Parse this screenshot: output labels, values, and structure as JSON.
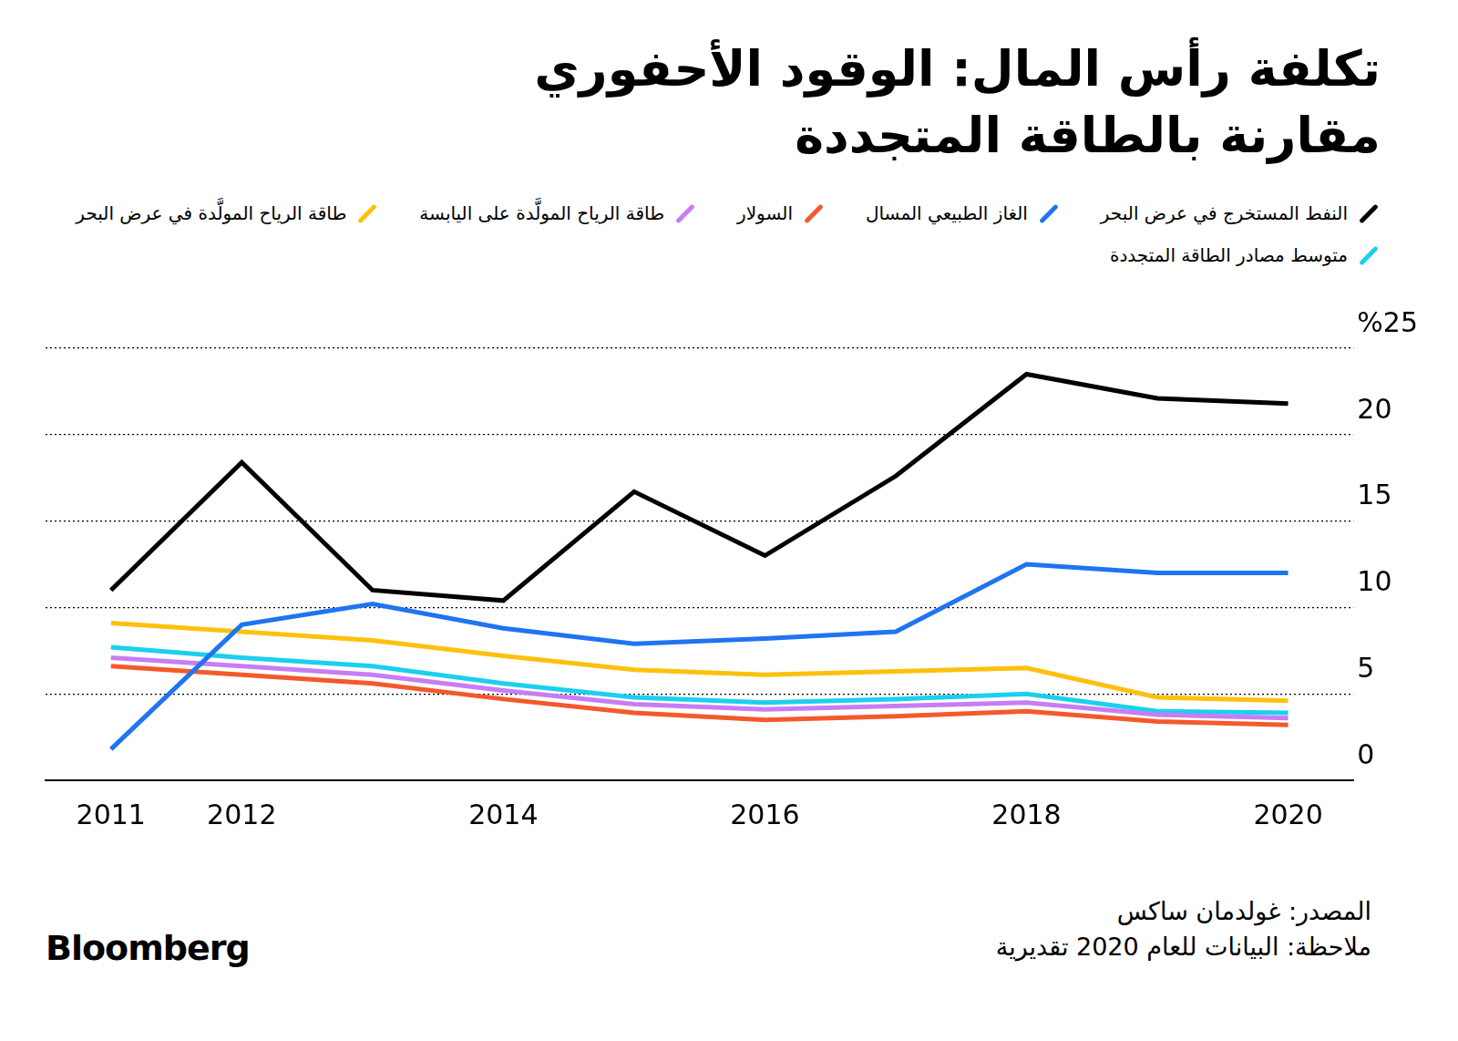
{
  "chart_data": {
    "type": "line",
    "title": "تكلفة رأس المال: الوقود الأحفوري مقارنة بالطاقة المتجددة",
    "categories": [
      "2011",
      "2012",
      null,
      "2014",
      null,
      "2016",
      null,
      "2018",
      null,
      "2020"
    ],
    "series": [
      {
        "name": "النفط المستخرج في عرض البحر",
        "color": "#000000",
        "values": [
          11.0,
          18.4,
          11.0,
          10.4,
          16.7,
          13.0,
          17.6,
          23.5,
          22.1,
          21.8
        ]
      },
      {
        "name": "الغاز الطبيعي المسال",
        "color": "#1f74f0",
        "values": [
          1.8,
          9.0,
          10.2,
          8.8,
          7.9,
          8.2,
          8.6,
          12.5,
          12.0,
          12.0
        ]
      },
      {
        "name": "السولار",
        "color": "#f4592b",
        "values": [
          6.6,
          6.1,
          5.6,
          4.7,
          3.9,
          3.5,
          3.7,
          4.0,
          3.4,
          3.2
        ]
      },
      {
        "name": "طاقة الرياح المولَّدة على اليابسة",
        "color": "#c77df3",
        "values": [
          7.1,
          6.6,
          6.1,
          5.2,
          4.4,
          4.1,
          4.3,
          4.5,
          3.8,
          3.6
        ]
      },
      {
        "name": "طاقة الرياح المولَّدة في عرض البحر",
        "color": "#fcc10f",
        "values": [
          9.1,
          8.6,
          8.1,
          7.2,
          6.4,
          6.1,
          6.3,
          6.5,
          4.8,
          4.6
        ]
      },
      {
        "name": "متوسط مصادر الطاقة المتجددة",
        "color": "#1ccfee",
        "values": [
          7.7,
          7.1,
          6.6,
          5.6,
          4.8,
          4.5,
          4.7,
          5.0,
          4.0,
          3.9
        ]
      }
    ],
    "ylim": [
      0,
      25
    ],
    "yticks": [
      0,
      5,
      10,
      15,
      20,
      {
        "value": 25,
        "label": "%25"
      }
    ],
    "grid": true,
    "legend": "top"
  },
  "source": "المصدر: غولدمان ساكس",
  "note": "ملاحظة: البيانات للعام 2020 تقديرية",
  "brand": "Bloomberg"
}
